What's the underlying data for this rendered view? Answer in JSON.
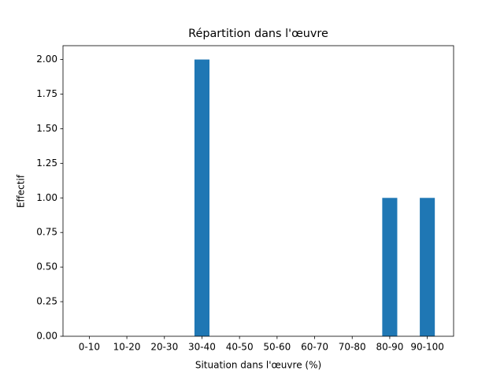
{
  "chart_data": {
    "type": "bar",
    "title": "Répartition dans l'œuvre",
    "x_label": "Situation dans l'œuvre (%)",
    "y_label": "Effectif",
    "categories": [
      "0-10",
      "10-20",
      "20-30",
      "30-40",
      "40-50",
      "50-60",
      "60-70",
      "70-80",
      "80-90",
      "90-100"
    ],
    "values": [
      0,
      0,
      0,
      2,
      0,
      0,
      0,
      0,
      1,
      1
    ],
    "color": "#1f77b4",
    "ylim": [
      0,
      2.1
    ],
    "yticks": [
      {
        "value": 0,
        "label": "0.00"
      },
      {
        "value": 0.25,
        "label": "0.25"
      },
      {
        "value": 0.5,
        "label": "0.50"
      },
      {
        "value": 0.75,
        "label": "0.75"
      },
      {
        "value": 1,
        "label": "1.00"
      },
      {
        "value": 1.25,
        "label": "1.25"
      },
      {
        "value": 1.5,
        "label": "1.50"
      },
      {
        "value": 1.75,
        "label": "1.75"
      },
      {
        "value": 2,
        "label": "2.00"
      }
    ],
    "grid": false
  }
}
